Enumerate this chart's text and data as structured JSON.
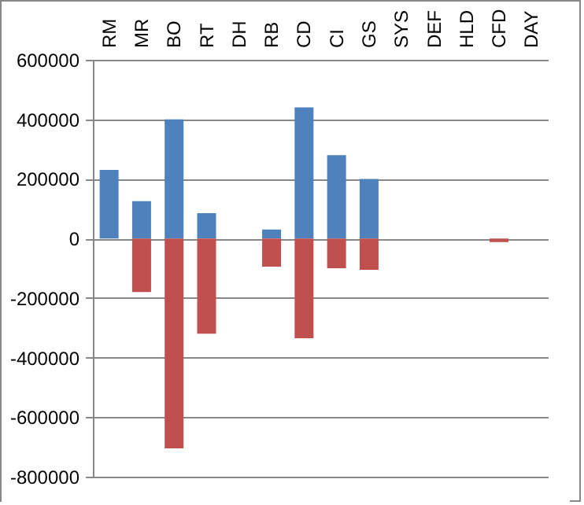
{
  "chart_data": {
    "type": "bar",
    "stacked": true,
    "categories": [
      "RM",
      "MR",
      "BO",
      "RT",
      "DH",
      "RB",
      "CD",
      "CI",
      "GS",
      "SYS",
      "DEF",
      "HLD",
      "CFD",
      "DAY"
    ],
    "series": [
      {
        "color": "#4f81bd",
        "values": [
          230000,
          125000,
          400000,
          85000,
          null,
          30000,
          440000,
          280000,
          200000,
          null,
          null,
          null,
          null,
          null
        ]
      },
      {
        "color": "#c0504d",
        "values": [
          null,
          -180000,
          -705000,
          -320000,
          null,
          -95000,
          -335000,
          -100000,
          -105000,
          null,
          null,
          null,
          -12000,
          null
        ]
      }
    ],
    "ylim": [
      -800000,
      600000
    ],
    "yticks": [
      -800000,
      -600000,
      -400000,
      -200000,
      0,
      200000,
      400000,
      600000
    ],
    "grid": "y",
    "legend": false
  }
}
